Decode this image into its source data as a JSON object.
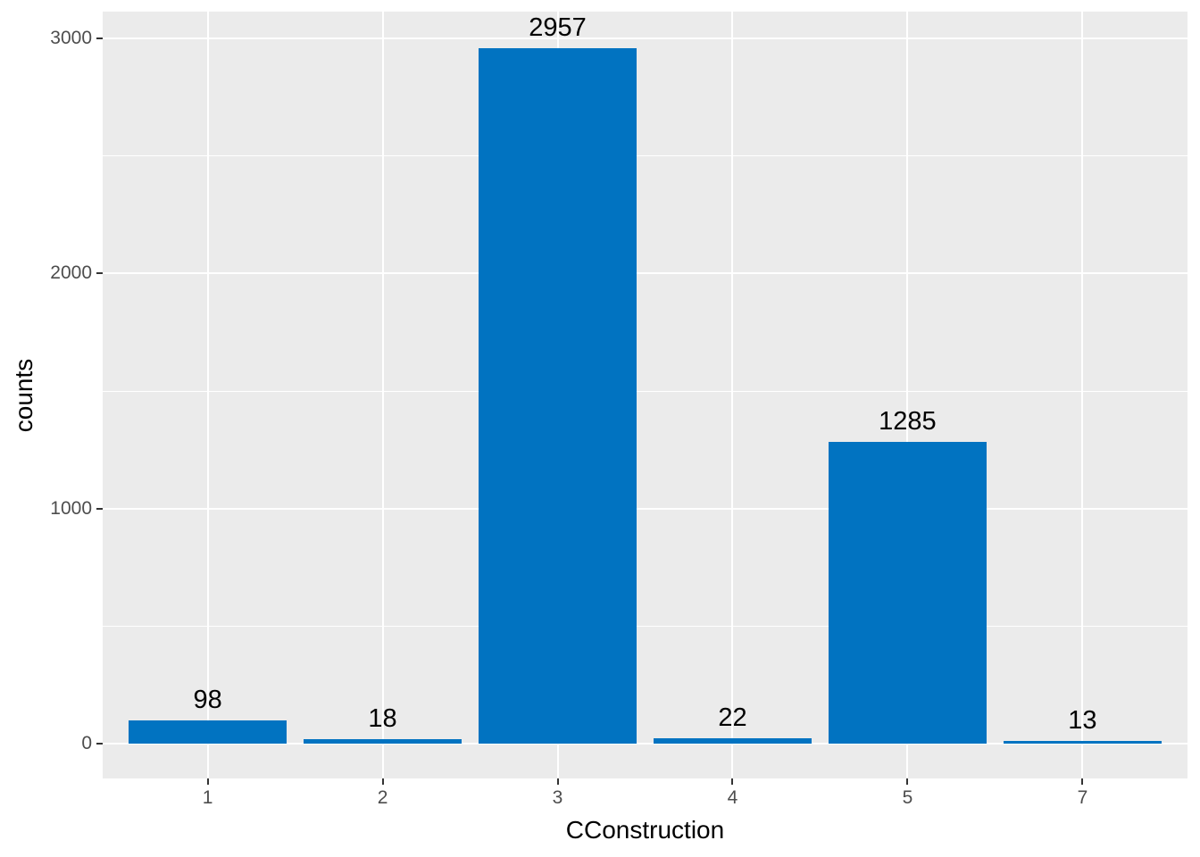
{
  "chart_data": {
    "type": "bar",
    "title": "",
    "xlabel": "CConstruction",
    "ylabel": "counts",
    "categories": [
      "1",
      "2",
      "3",
      "4",
      "5",
      "7"
    ],
    "values": [
      98,
      18,
      2957,
      22,
      1285,
      13
    ],
    "bar_labels": [
      "98",
      "18",
      "2957",
      "22",
      "1285",
      "13"
    ],
    "yticks": [
      0,
      1000,
      2000,
      3000
    ],
    "ytick_labels": [
      "0",
      "1000",
      "2000",
      "3000"
    ],
    "yminor": [
      500,
      1500,
      2500
    ],
    "ylim": [
      -148,
      3114
    ],
    "bar_width_fraction": 0.9,
    "x_expand": 0.6,
    "grid": true,
    "legend": "none",
    "colors": {
      "bar": "#0173C1",
      "panel_background": "#EBEBEB",
      "gridline": "#FFFFFF",
      "tick_text": "#4D4D4D",
      "tick_mark": "#333333",
      "axis_title": "#000000",
      "bar_label": "#000000",
      "figure_background": "#FFFFFF"
    }
  }
}
